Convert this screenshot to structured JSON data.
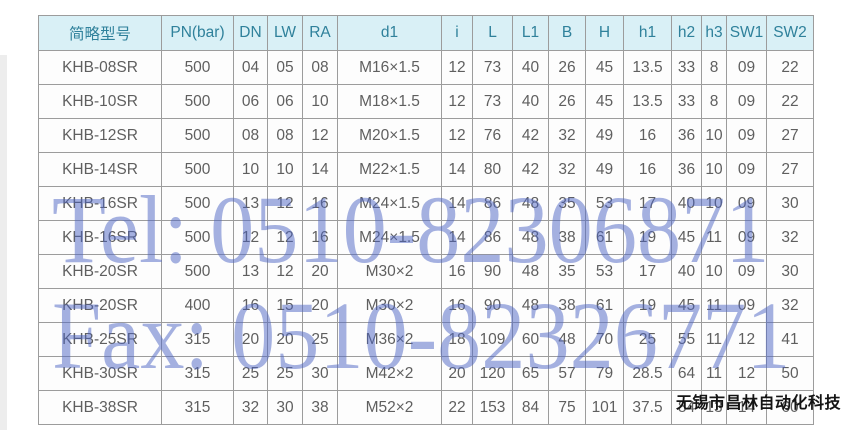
{
  "table": {
    "headers": [
      "简略型号",
      "PN(bar)",
      "DN",
      "LW",
      "RA",
      "d1",
      "i",
      "L",
      "L1",
      "B",
      "H",
      "h1",
      "h2",
      "h3",
      "SW1",
      "SW2"
    ],
    "rows": [
      [
        "KHB-08SR",
        "500",
        "04",
        "05",
        "08",
        "M16×1.5",
        "12",
        "73",
        "40",
        "26",
        "45",
        "13.5",
        "33",
        "8",
        "09",
        "22"
      ],
      [
        "KHB-10SR",
        "500",
        "06",
        "06",
        "10",
        "M18×1.5",
        "12",
        "73",
        "40",
        "26",
        "45",
        "13.5",
        "33",
        "8",
        "09",
        "22"
      ],
      [
        "KHB-12SR",
        "500",
        "08",
        "08",
        "12",
        "M20×1.5",
        "12",
        "76",
        "42",
        "32",
        "49",
        "16",
        "36",
        "10",
        "09",
        "27"
      ],
      [
        "KHB-14SR",
        "500",
        "10",
        "10",
        "14",
        "M22×1.5",
        "14",
        "80",
        "42",
        "32",
        "49",
        "16",
        "36",
        "10",
        "09",
        "27"
      ],
      [
        "KHB-16SR",
        "500",
        "13",
        "12",
        "16",
        "M24×1.5",
        "14",
        "86",
        "48",
        "35",
        "53",
        "17",
        "40",
        "10",
        "09",
        "30"
      ],
      [
        "KHB-16SR",
        "500",
        "12",
        "12",
        "16",
        "M24×1.5",
        "14",
        "86",
        "48",
        "38",
        "61",
        "19",
        "45",
        "11",
        "09",
        "32"
      ],
      [
        "KHB-20SR",
        "500",
        "13",
        "12",
        "20",
        "M30×2",
        "16",
        "90",
        "48",
        "35",
        "53",
        "17",
        "40",
        "10",
        "09",
        "30"
      ],
      [
        "KHB-20SR",
        "400",
        "16",
        "15",
        "20",
        "M30×2",
        "16",
        "90",
        "48",
        "38",
        "61",
        "19",
        "45",
        "11",
        "09",
        "32"
      ],
      [
        "KHB-25SR",
        "315",
        "20",
        "20",
        "25",
        "M36×2",
        "18",
        "109",
        "60",
        "48",
        "70",
        "25",
        "55",
        "11",
        "12",
        "41"
      ],
      [
        "KHB-30SR",
        "315",
        "25",
        "25",
        "30",
        "M42×2",
        "20",
        "120",
        "65",
        "57",
        "79",
        "28.5",
        "64",
        "11",
        "12",
        "50"
      ],
      [
        "KHB-38SR",
        "315",
        "32",
        "30",
        "38",
        "M52×2",
        "22",
        "153",
        "84",
        "75",
        "101",
        "37.5",
        "84",
        "13",
        "14",
        "60"
      ]
    ]
  },
  "watermarks": {
    "tel": "Tel: 0510-82306871",
    "fax": "Fax: 0510-82326771",
    "color": "rgba(75,100,195,0.5)"
  },
  "brand": {
    "text": "无锡市昌林自动化科技",
    "color": "#141414"
  },
  "colors": {
    "header_bg": "#d9f0f6",
    "header_text": "#2f819b",
    "cell_text": "#5f5f5f",
    "border": "#9c9c9c"
  }
}
